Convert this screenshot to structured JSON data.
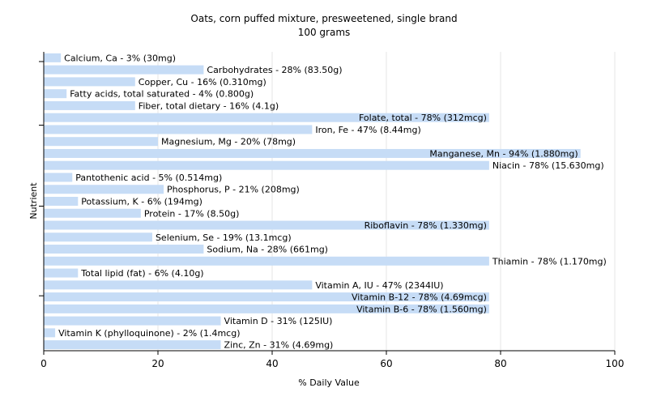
{
  "chart_data": {
    "type": "bar",
    "orientation": "horizontal",
    "title": "Oats, corn puffed mixture, presweetened, single brand",
    "subtitle": "100 grams",
    "xlabel": "% Daily Value",
    "ylabel": "Nutrient",
    "xlim": [
      0,
      100
    ],
    "xticks": [
      "0",
      "20",
      "40",
      "60",
      "80",
      "100"
    ],
    "grid": true,
    "bar_color": "#c6dcf6",
    "categories": [
      "Calcium, Ca",
      "Carbohydrates",
      "Copper, Cu",
      "Fatty acids, total saturated",
      "Fiber, total dietary",
      "Folate, total",
      "Iron, Fe",
      "Magnesium, Mg",
      "Manganese, Mn",
      "Niacin",
      "Pantothenic acid",
      "Phosphorus, P",
      "Potassium, K",
      "Protein",
      "Riboflavin",
      "Selenium, Se",
      "Sodium, Na",
      "Thiamin",
      "Total lipid (fat)",
      "Vitamin A, IU",
      "Vitamin B-12",
      "Vitamin B-6",
      "Vitamin D",
      "Vitamin K (phylloquinone)",
      "Zinc, Zn"
    ],
    "values": [
      3,
      28,
      16,
      4,
      16,
      78,
      47,
      20,
      94,
      78,
      5,
      21,
      6,
      17,
      78,
      19,
      28,
      78,
      6,
      47,
      78,
      78,
      31,
      2,
      31
    ],
    "labels": [
      "Calcium, Ca - 3% (30mg)",
      "Carbohydrates - 28% (83.50g)",
      "Copper, Cu - 16% (0.310mg)",
      "Fatty acids, total saturated - 4% (0.800g)",
      "Fiber, total dietary - 16% (4.1g)",
      "Folate, total - 78% (312mcg)",
      "Iron, Fe - 47% (8.44mg)",
      "Magnesium, Mg - 20% (78mg)",
      "Manganese, Mn - 94% (1.880mg)",
      "Niacin - 78% (15.630mg)",
      "Pantothenic acid - 5% (0.514mg)",
      "Phosphorus, P - 21% (208mg)",
      "Potassium, K - 6% (194mg)",
      "Protein - 17% (8.50g)",
      "Riboflavin - 78% (1.330mg)",
      "Selenium, Se - 19% (13.1mcg)",
      "Sodium, Na - 28% (661mg)",
      "Thiamin - 78% (1.170mg)",
      "Total lipid (fat) - 6% (4.10g)",
      "Vitamin A, IU - 47% (2344IU)",
      "Vitamin B-12 - 78% (4.69mcg)",
      "Vitamin B-6 - 78% (1.560mg)",
      "Vitamin D - 31% (125IU)",
      "Vitamin K (phylloquinone) - 2% (1.4mcg)",
      "Zinc, Zn - 31% (4.69mg)"
    ]
  }
}
